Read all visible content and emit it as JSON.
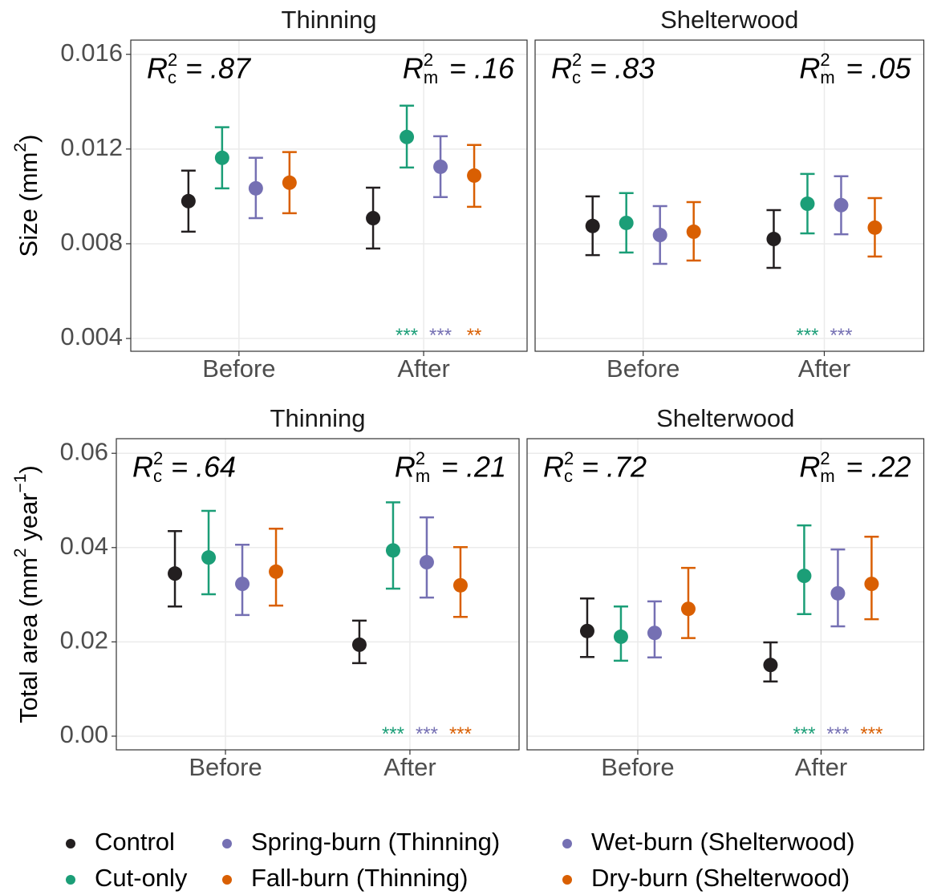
{
  "chart_data": [
    {
      "type": "errorbar",
      "title": "Thinning",
      "categories": [
        "Before",
        "After"
      ],
      "ylabel": [
        {
          "text": "Size (mm"
        },
        {
          "sup": "2"
        },
        {
          "text": ")"
        }
      ],
      "ylim": [
        0.00346,
        0.0166
      ],
      "yticks": [
        0.004,
        0.008,
        0.012,
        0.016
      ],
      "grid": true,
      "r2c": {
        "symbol": "R",
        "sup": "2",
        "sub": "c",
        "text": "= .87"
      },
      "r2m": {
        "symbol": "R",
        "sup": "2",
        "sub": "m",
        "text": "= .16"
      },
      "series": [
        {
          "name": "Control",
          "color": "#231f20",
          "values": [
            0.0098,
            0.00908
          ],
          "lower": [
            0.00851,
            0.0078
          ],
          "upper": [
            0.01109,
            0.01037
          ],
          "significance": [
            null,
            null
          ]
        },
        {
          "name": "Cut-only",
          "color": "#1b9e77",
          "values": [
            0.01163,
            0.01251
          ],
          "lower": [
            0.01034,
            0.01122
          ],
          "upper": [
            0.01292,
            0.01383
          ],
          "significance": [
            null,
            "***"
          ]
        },
        {
          "name": "Spring-burn (Thinning)",
          "color": "#7570b3",
          "values": [
            0.01034,
            0.01125
          ],
          "lower": [
            0.00908,
            0.00997
          ],
          "upper": [
            0.01163,
            0.01254
          ],
          "significance": [
            null,
            "***"
          ]
        },
        {
          "name": "Fall-burn (Thinning)",
          "color": "#d95f02",
          "values": [
            0.01058,
            0.01088
          ],
          "lower": [
            0.00929,
            0.00956
          ],
          "upper": [
            0.01187,
            0.01217
          ],
          "significance": [
            null,
            "**"
          ]
        }
      ]
    },
    {
      "type": "errorbar",
      "title": "Shelterwood",
      "categories": [
        "Before",
        "After"
      ],
      "ylim": [
        0.00346,
        0.0166
      ],
      "yticks": [
        0.004,
        0.008,
        0.012,
        0.016
      ],
      "grid": true,
      "r2c": {
        "symbol": "R",
        "sup": "2",
        "sub": "c",
        "text": "= .83"
      },
      "r2m": {
        "symbol": "R",
        "sup": "2",
        "sub": "m",
        "text": "= .05"
      },
      "series": [
        {
          "name": "Control",
          "color": "#231f20",
          "values": [
            0.00875,
            0.0082
          ],
          "lower": [
            0.00752,
            0.00698
          ],
          "upper": [
            0.01,
            0.00942
          ],
          "significance": [
            null,
            null
          ]
        },
        {
          "name": "Cut-only",
          "color": "#1b9e77",
          "values": [
            0.00888,
            0.00969
          ],
          "lower": [
            0.00763,
            0.00844
          ],
          "upper": [
            0.01014,
            0.01095
          ],
          "significance": [
            null,
            "***"
          ]
        },
        {
          "name": "Wet-burn (Shelterwood)",
          "color": "#7570b3",
          "values": [
            0.00837,
            0.00963
          ],
          "lower": [
            0.00715,
            0.0084
          ],
          "upper": [
            0.00959,
            0.01085
          ],
          "significance": [
            null,
            "***"
          ]
        },
        {
          "name": "Dry-burn (Shelterwood)",
          "color": "#d95f02",
          "values": [
            0.00851,
            0.00868
          ],
          "lower": [
            0.00729,
            0.00746
          ],
          "upper": [
            0.00976,
            0.00993
          ],
          "significance": [
            null,
            null
          ]
        }
      ]
    },
    {
      "type": "errorbar",
      "title": "Thinning",
      "categories": [
        "Before",
        "After"
      ],
      "ylabel": [
        {
          "text": "Total area (mm"
        },
        {
          "sup": "2"
        },
        {
          "text": " year"
        },
        {
          "sup": "−1"
        },
        {
          "text": ")"
        }
      ],
      "ylim": [
        -0.0029,
        0.0631
      ],
      "yticks": [
        {
          "value": 0,
          "label": "0.00"
        },
        0.02,
        0.04,
        0.06
      ],
      "grid": true,
      "r2c": {
        "symbol": "R",
        "sup": "2",
        "sub": "c",
        "text": "= .64"
      },
      "r2m": {
        "symbol": "R",
        "sup": "2",
        "sub": "m",
        "text": "= .21"
      },
      "series": [
        {
          "name": "Control",
          "color": "#231f20",
          "values": [
            0.0345,
            0.0194
          ],
          "lower": [
            0.0275,
            0.0155
          ],
          "upper": [
            0.0435,
            0.0245
          ],
          "significance": [
            null,
            null
          ]
        },
        {
          "name": "Cut-only",
          "color": "#1b9e77",
          "values": [
            0.0379,
            0.0394
          ],
          "lower": [
            0.0301,
            0.0313
          ],
          "upper": [
            0.0478,
            0.0496
          ],
          "significance": [
            null,
            "***"
          ]
        },
        {
          "name": "Spring-burn (Thinning)",
          "color": "#7570b3",
          "values": [
            0.0323,
            0.0369
          ],
          "lower": [
            0.0257,
            0.0294
          ],
          "upper": [
            0.0406,
            0.0464
          ],
          "significance": [
            null,
            "***"
          ]
        },
        {
          "name": "Fall-burn (Thinning)",
          "color": "#d95f02",
          "values": [
            0.0349,
            0.032
          ],
          "lower": [
            0.0277,
            0.0253
          ],
          "upper": [
            0.044,
            0.0401
          ],
          "significance": [
            null,
            "***"
          ]
        }
      ]
    },
    {
      "type": "errorbar",
      "title": "Shelterwood",
      "categories": [
        "Before",
        "After"
      ],
      "ylim": [
        -0.0029,
        0.0631
      ],
      "yticks": [
        {
          "value": 0,
          "label": "0.00"
        },
        0.02,
        0.04,
        0.06
      ],
      "grid": true,
      "r2c": {
        "symbol": "R",
        "sup": "2",
        "sub": "c",
        "text": "= .72"
      },
      "r2m": {
        "symbol": "R",
        "sup": "2",
        "sub": "m",
        "text": "= .22"
      },
      "series": [
        {
          "name": "Control",
          "color": "#231f20",
          "values": [
            0.0223,
            0.0151
          ],
          "lower": [
            0.0168,
            0.0116
          ],
          "upper": [
            0.0292,
            0.0199
          ],
          "significance": [
            null,
            null
          ]
        },
        {
          "name": "Cut-only",
          "color": "#1b9e77",
          "values": [
            0.0211,
            0.034
          ],
          "lower": [
            0.016,
            0.0259
          ],
          "upper": [
            0.0275,
            0.0447
          ],
          "significance": [
            null,
            "***"
          ]
        },
        {
          "name": "Wet-burn (Shelterwood)",
          "color": "#7570b3",
          "values": [
            0.0219,
            0.0303
          ],
          "lower": [
            0.0167,
            0.0233
          ],
          "upper": [
            0.0286,
            0.0396
          ],
          "significance": [
            null,
            "***"
          ]
        },
        {
          "name": "Dry-burn (Shelterwood)",
          "color": "#d95f02",
          "values": [
            0.027,
            0.0323
          ],
          "lower": [
            0.0208,
            0.0248
          ],
          "upper": [
            0.0357,
            0.0423
          ],
          "significance": [
            null,
            "***"
          ]
        }
      ]
    }
  ]
}
